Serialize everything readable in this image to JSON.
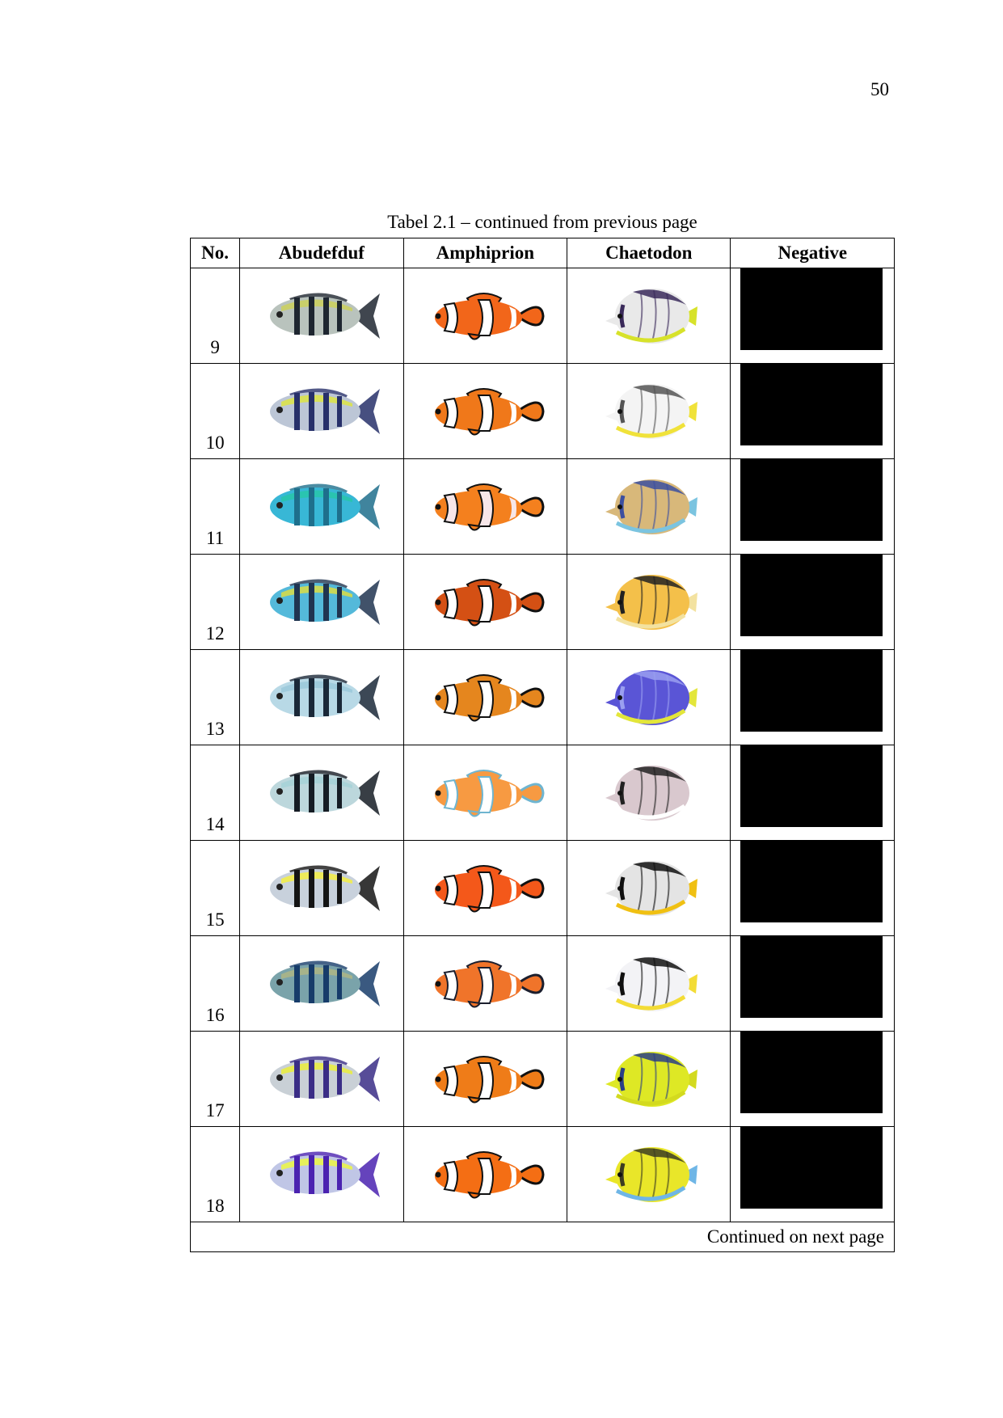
{
  "page_number": "50",
  "caption": "Tabel 2.1 – continued from previous page",
  "headers": [
    "No.",
    "Abudefduf",
    "Amphiprion",
    "Chaetodon",
    "Negative"
  ],
  "footer": "Continued on next page",
  "rows": [
    {
      "no": "9",
      "abu": {
        "body": "#b9c3bd",
        "back": "#c9cf6a",
        "stripe": "#1e2630"
      },
      "amp": {
        "body": "#f2661a",
        "band": "#ffffff",
        "edge": "#111111"
      },
      "cha": {
        "body": "#e9e9e9",
        "accent": "#d7e22a",
        "mark": "#3a2a5a"
      }
    },
    {
      "no": "10",
      "abu": {
        "body": "#bcc6d6",
        "back": "#d8e05a",
        "stripe": "#27306a"
      },
      "amp": {
        "body": "#f0781a",
        "band": "#ffffff",
        "edge": "#111111"
      },
      "cha": {
        "body": "#f4f4f4",
        "accent": "#f0e23a",
        "mark": "#555555"
      }
    },
    {
      "no": "11",
      "abu": {
        "body": "#38b7d6",
        "back": "#2ac4b0",
        "stripe": "#1e6f8c"
      },
      "amp": {
        "body": "#f4801e",
        "band": "#f7e6e8",
        "edge": "#111111"
      },
      "cha": {
        "body": "#d8b87a",
        "accent": "#7bc4e0",
        "mark": "#3c4fa0"
      }
    },
    {
      "no": "12",
      "abu": {
        "body": "#54b9da",
        "back": "#c7d75a",
        "stripe": "#203450"
      },
      "amp": {
        "body": "#d45014",
        "band": "#ffffff",
        "edge": "#111111"
      },
      "cha": {
        "body": "#f4c04a",
        "accent": "#f3e2a0",
        "mark": "#222222"
      }
    },
    {
      "no": "13",
      "abu": {
        "body": "#b8d9e6",
        "back": "#9fcbdc",
        "stripe": "#1a2838"
      },
      "amp": {
        "body": "#e5861e",
        "band": "#ffffff",
        "edge": "#111111"
      },
      "cha": {
        "body": "#5a55d6",
        "accent": "#e3e63a",
        "mark": "#9a9ff0"
      }
    },
    {
      "no": "14",
      "abu": {
        "body": "#bcd7dc",
        "back": "#a9d3d8",
        "stripe": "#151c24"
      },
      "amp": {
        "body": "#f79a42",
        "band": "#ffffff",
        "edge": "#6fb5d0"
      },
      "cha": {
        "body": "#d9c8ce",
        "accent": "#ffffff",
        "mark": "#222222"
      }
    },
    {
      "no": "15",
      "abu": {
        "body": "#c8d1dc",
        "back": "#eeeb5a",
        "stripe": "#141414"
      },
      "amp": {
        "body": "#f4581a",
        "band": "#ffffff",
        "edge": "#111111"
      },
      "cha": {
        "body": "#e4e4e4",
        "accent": "#f0c012",
        "mark": "#111111"
      }
    },
    {
      "no": "16",
      "abu": {
        "body": "#7aa3aa",
        "back": "#a6b38a",
        "stripe": "#173c6a"
      },
      "amp": {
        "body": "#f0742a",
        "band": "#ffffff",
        "edge": "#1c1f2e"
      },
      "cha": {
        "body": "#f3f3f6",
        "accent": "#f3dc36",
        "mark": "#111111"
      }
    },
    {
      "no": "17",
      "abu": {
        "body": "#c9d0d6",
        "back": "#e6ea52",
        "stripe": "#3a2d86"
      },
      "amp": {
        "body": "#ef7c18",
        "band": "#ffffff",
        "edge": "#111111"
      },
      "cha": {
        "body": "#dee825",
        "accent": "#d3da1f",
        "mark": "#2b3f86"
      }
    },
    {
      "no": "18",
      "abu": {
        "body": "#c0c6e6",
        "back": "#e6f05a",
        "stripe": "#4a22b0"
      },
      "amp": {
        "body": "#f46e14",
        "band": "#ffffff",
        "edge": "#111111"
      },
      "cha": {
        "body": "#e9e629",
        "accent": "#6fb6e6",
        "mark": "#3c3c22"
      }
    }
  ]
}
